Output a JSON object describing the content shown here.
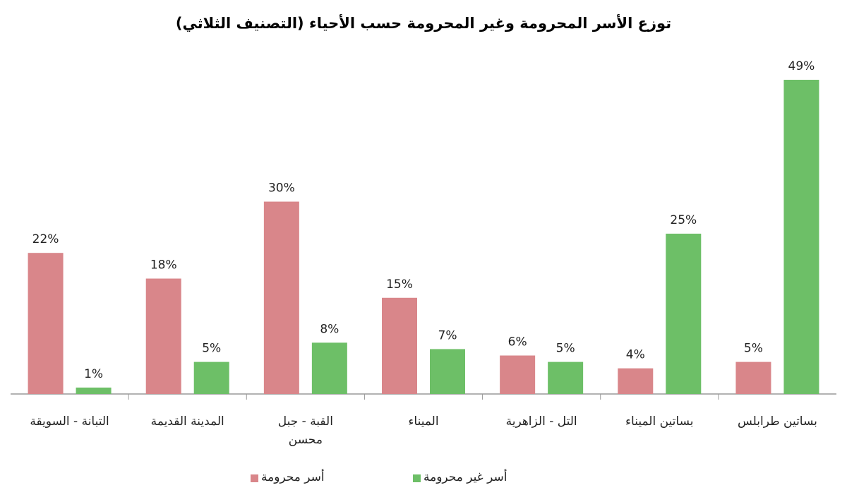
{
  "chart_data": {
    "type": "bar",
    "title": "توزع الأسر المحرومة وغير المحرومة حسب الأحياء (التصنيف الثلاثي)",
    "categories": [
      "التبانة - السويقة",
      "المدينة القديمة",
      "القبة - جبل محسن",
      "الميناء",
      "التل - الزاهرية",
      "بساتين الميناء",
      "بساتين طرابلس"
    ],
    "series": [
      {
        "name": "أسر محرومة",
        "color": "#d9868a",
        "values": [
          22,
          18,
          30,
          15,
          6,
          4,
          5
        ],
        "value_labels": [
          "22%",
          "18%",
          "30%",
          "15%",
          "6%",
          "4%",
          "5%"
        ]
      },
      {
        "name": "أسر غير محرومة",
        "color": "#6dbf67",
        "values": [
          1,
          5,
          8,
          7,
          5,
          25,
          49
        ],
        "value_labels": [
          "1%",
          "5%",
          "8%",
          "7%",
          "5%",
          "25%",
          "49%"
        ]
      }
    ]
  }
}
